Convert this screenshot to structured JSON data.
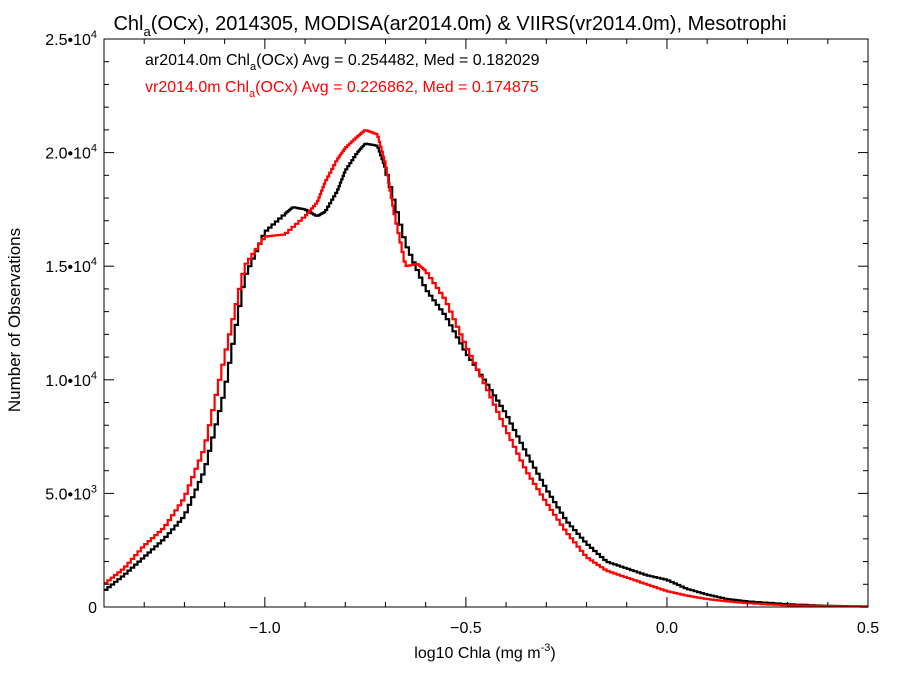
{
  "chart_data": {
    "type": "line",
    "title": {
      "pre": "Chl",
      "sub": "a",
      "post": "(OCx), 2014305, MODISA(ar2014.0m) & VIIRS(vr2014.0m), Mesotrophi"
    },
    "xlabel": {
      "pre": "log10 Chla (mg m",
      "sup": "-3",
      "post": ")"
    },
    "ylabel": "Number of Observations",
    "xlim": [
      -1.4,
      0.5
    ],
    "ylim": [
      0,
      25000
    ],
    "grid": false,
    "step": true,
    "x_ticks": [
      {
        "value": -1.0,
        "label": "−1.0"
      },
      {
        "value": -0.5,
        "label": "−0.5"
      },
      {
        "value": 0.0,
        "label": "0.0"
      },
      {
        "value": 0.5,
        "label": "0.5"
      }
    ],
    "y_ticks": [
      {
        "value": 0,
        "mant": "0",
        "exp": ""
      },
      {
        "value": 5000,
        "mant": "5.0•10",
        "exp": "3"
      },
      {
        "value": 10000,
        "mant": "1.0•10",
        "exp": "4"
      },
      {
        "value": 15000,
        "mant": "1.5•10",
        "exp": "4"
      },
      {
        "value": 20000,
        "mant": "2.0•10",
        "exp": "4"
      },
      {
        "value": 25000,
        "mant": "2.5•10",
        "exp": "4"
      }
    ],
    "annotations": [
      {
        "pre": "ar2014.0m Chl",
        "sub": "a",
        "post": "(OCx) Avg = 0.254482, Med = 0.182029",
        "color": "#000000"
      },
      {
        "pre": "vr2014.0m Chl",
        "sub": "a",
        "post": "(OCx) Avg = 0.226862, Med = 0.174875",
        "color": "#ff0000"
      }
    ],
    "series": [
      {
        "color": "#000000",
        "x": [
          -1.4,
          -1.35,
          -1.3,
          -1.25,
          -1.2,
          -1.15,
          -1.1,
          -1.05,
          -1.0,
          -0.95,
          -0.93,
          -0.9,
          -0.87,
          -0.85,
          -0.82,
          -0.8,
          -0.77,
          -0.75,
          -0.72,
          -0.7,
          -0.65,
          -0.6,
          -0.55,
          -0.5,
          -0.45,
          -0.4,
          -0.35,
          -0.3,
          -0.25,
          -0.2,
          -0.15,
          -0.1,
          -0.05,
          0.0,
          0.05,
          0.1,
          0.15,
          0.2,
          0.3,
          0.4,
          0.5
        ],
        "y": [
          700,
          1400,
          2200,
          3000,
          4000,
          6000,
          9500,
          14500,
          16500,
          17300,
          17600,
          17500,
          17200,
          17400,
          18300,
          19200,
          20000,
          20400,
          20300,
          19300,
          16000,
          14000,
          12800,
          11200,
          9900,
          8500,
          6800,
          5200,
          3800,
          2800,
          2000,
          1700,
          1400,
          1200,
          800,
          550,
          350,
          250,
          120,
          50,
          20
        ]
      },
      {
        "color": "#ff0000",
        "x": [
          -1.4,
          -1.35,
          -1.3,
          -1.25,
          -1.2,
          -1.15,
          -1.1,
          -1.05,
          -1.0,
          -0.95,
          -0.9,
          -0.87,
          -0.85,
          -0.82,
          -0.8,
          -0.77,
          -0.75,
          -0.72,
          -0.7,
          -0.68,
          -0.65,
          -0.62,
          -0.6,
          -0.55,
          -0.5,
          -0.45,
          -0.4,
          -0.35,
          -0.3,
          -0.25,
          -0.2,
          -0.15,
          -0.1,
          -0.05,
          0.0,
          0.05,
          0.1,
          0.15,
          0.2,
          0.3,
          0.4,
          0.5
        ],
        "y": [
          1000,
          1700,
          2700,
          3500,
          4800,
          7000,
          11000,
          15000,
          16300,
          16400,
          17200,
          17800,
          18700,
          19700,
          20200,
          20700,
          21000,
          20800,
          19500,
          17500,
          15000,
          15100,
          14800,
          13500,
          11500,
          9700,
          7800,
          6000,
          4600,
          3300,
          2200,
          1600,
          1300,
          1000,
          700,
          500,
          350,
          250,
          170,
          70,
          40,
          20
        ]
      }
    ]
  }
}
